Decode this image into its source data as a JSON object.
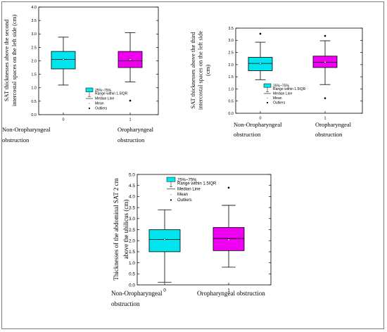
{
  "colors": {
    "cyan": "#00E5EE",
    "magenta": "#F000F0",
    "axis": "#000000"
  },
  "chart_data": [
    {
      "type": "box",
      "ylabel_lines": [
        "SAT thicknesses above the second",
        "intercostal spaces on the left side (cm)"
      ],
      "ylim": [
        0,
        4.0
      ],
      "yticks": [
        "0.0",
        "0.5",
        "1.0",
        "1.5",
        "2.0",
        "2.5",
        "3.0",
        "3.5",
        "4.0"
      ],
      "xticks": [
        "0",
        "1"
      ],
      "category_labels": [
        [
          "Non-Oropharyngeal",
          "obstruction"
        ],
        [
          "Oropharyngeal",
          "obstruction"
        ]
      ],
      "series": [
        {
          "q1": 1.7,
          "median": 2.05,
          "mean": 2.05,
          "q3": 2.35,
          "whisker_low": 1.1,
          "whisker_high": 2.88,
          "outliers": []
        },
        {
          "q1": 1.75,
          "median": 2.0,
          "mean": 2.05,
          "q3": 2.35,
          "whisker_low": 1.22,
          "whisker_high": 3.05,
          "outliers": [
            0.52
          ]
        }
      ],
      "legend": [
        "25%~75%",
        "Range within 1.5IQR",
        "Median Line",
        "Mean",
        "Outliers"
      ]
    },
    {
      "type": "box",
      "ylabel_lines": [
        "SAT thicknesses above the third",
        "intercostal spaces on the left side",
        "(cm)"
      ],
      "ylim": [
        0,
        3.5
      ],
      "yticks": [
        "0.0",
        "0.5",
        "1.0",
        "1.5",
        "2.0",
        "2.5",
        "3.0",
        "3.5"
      ],
      "xticks": [
        "0",
        "1"
      ],
      "category_labels": [
        [
          "Non-Oropharyngeal",
          "obstruction"
        ],
        [
          "Oropharyngeal",
          "obstruction"
        ]
      ],
      "series": [
        {
          "q1": 1.75,
          "median": 2.05,
          "mean": 2.05,
          "q3": 2.3,
          "whisker_low": 1.38,
          "whisker_high": 2.92,
          "outliers": [
            3.27
          ]
        },
        {
          "q1": 1.88,
          "median": 2.1,
          "mean": 2.1,
          "q3": 2.35,
          "whisker_low": 1.18,
          "whisker_high": 2.98,
          "outliers": [
            3.18,
            0.62
          ]
        }
      ],
      "legend": [
        "25%~75%",
        "Range within 1.5IQR",
        "Median Line",
        "Mean",
        "Outliers"
      ]
    },
    {
      "type": "box",
      "ylabel_lines": [
        "Thicknesses of the abdominal SAT 2 cm",
        "above the ubilicus (cm)"
      ],
      "ylim": [
        0,
        5.0
      ],
      "yticks": [
        "0.0",
        "0.5",
        "1.0",
        "1.5",
        "2.0",
        "2.5",
        "3.0",
        "3.5",
        "4.0",
        "4.5",
        "5.0"
      ],
      "xticks": [
        "0",
        "1"
      ],
      "category_labels": [
        [
          "Non-Oropharyngeal",
          "obstruction"
        ],
        [
          "Oropharyngeal obstruction"
        ]
      ],
      "series": [
        {
          "q1": 1.5,
          "median": 2.05,
          "mean": 2.05,
          "q3": 2.5,
          "whisker_low": 0.12,
          "whisker_high": 3.4,
          "outliers": []
        },
        {
          "q1": 1.55,
          "median": 2.1,
          "mean": 2.05,
          "q3": 2.6,
          "whisker_low": 0.8,
          "whisker_high": 3.6,
          "outliers": [
            4.4
          ]
        }
      ],
      "legend": [
        "25%~75%",
        "Range within 1.5IQR",
        "Median Line",
        "Mean",
        "Outliers"
      ]
    }
  ]
}
